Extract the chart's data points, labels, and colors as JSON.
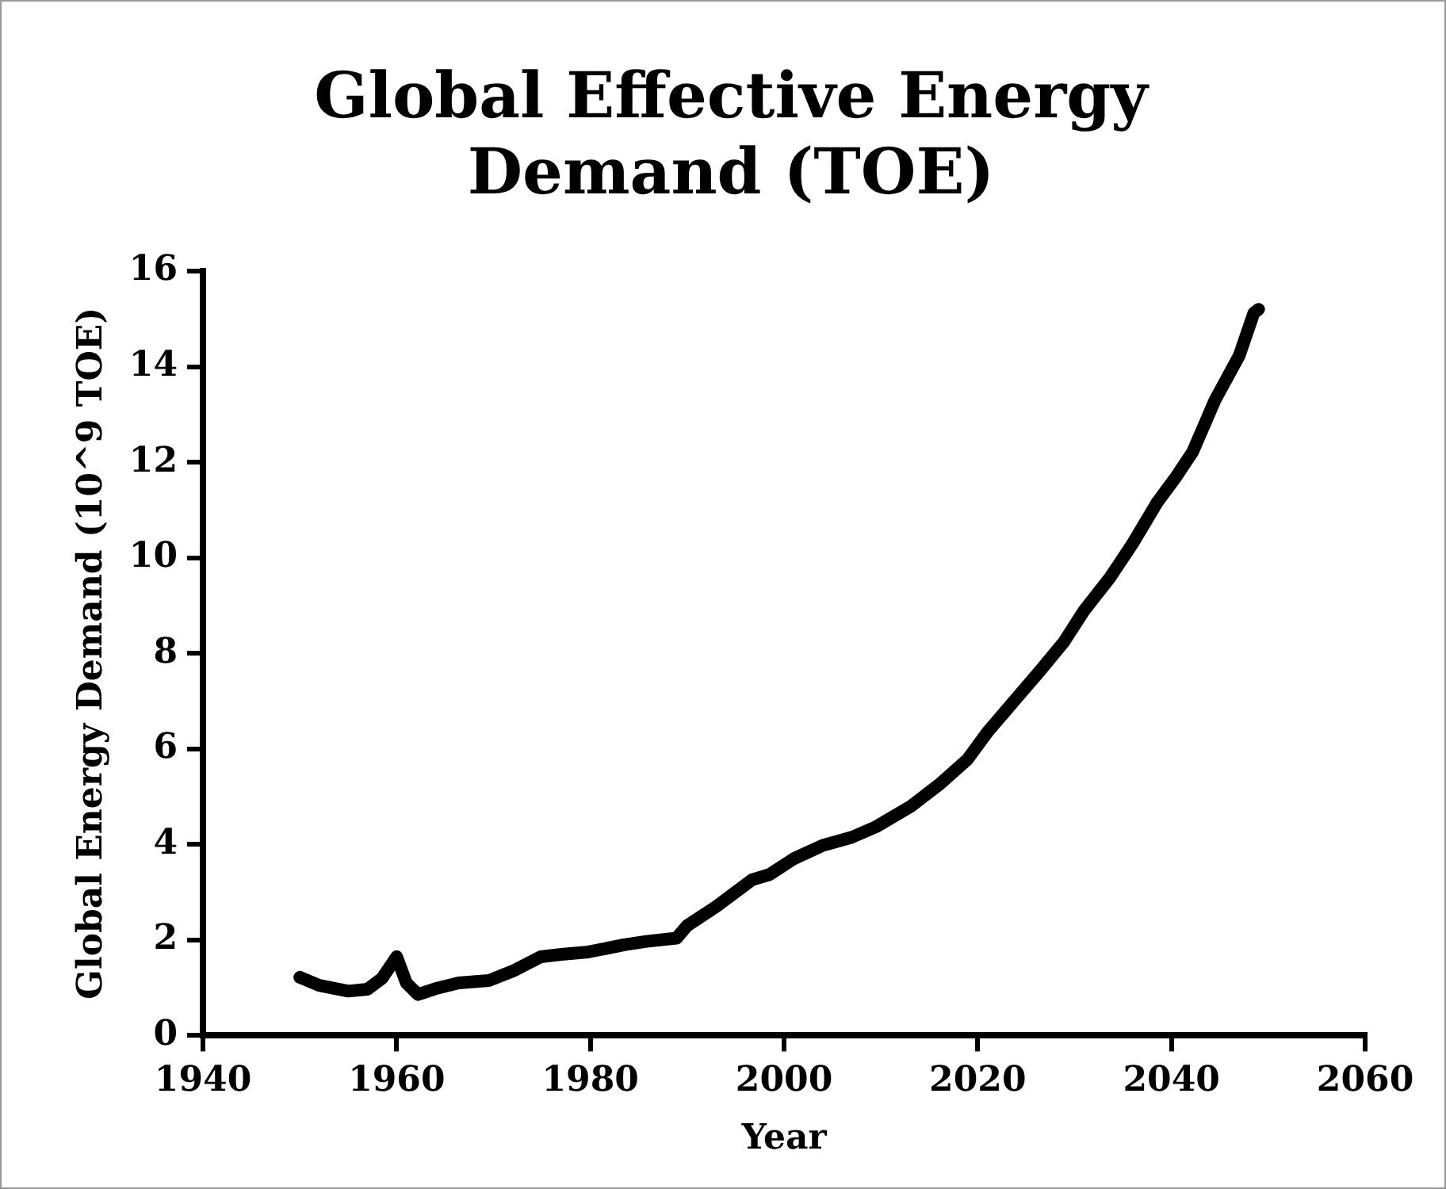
{
  "chart_data": {
    "type": "line",
    "title": "Global Effective Energy Demand (TOE)",
    "xlabel": "Year",
    "ylabel": "Global Energy Demand (10^9 TOE)",
    "x": [
      1950,
      1952,
      1955,
      1957,
      1958.5,
      1960,
      1961,
      1962.2,
      1964,
      1966.4,
      1969.5,
      1972,
      1974.9,
      1977,
      1979.8,
      1983.5,
      1985.8,
      1988.9,
      1990,
      1993,
      1996.7,
      1998.5,
      2001,
      2004,
      2007,
      2009.5,
      2013.1,
      2016,
      2018.9,
      2021,
      2024,
      2026.5,
      2028.9,
      2031,
      2033.6,
      2036,
      2038.5,
      2040.5,
      2042.2,
      2044.5,
      2047,
      2048.5,
      2049
    ],
    "series": [
      {
        "color": "#000000",
        "values": [
          1.22,
          1.05,
          0.93,
          0.97,
          1.2,
          1.65,
          1.1,
          0.86,
          0.98,
          1.1,
          1.15,
          1.35,
          1.65,
          1.7,
          1.75,
          1.9,
          1.97,
          2.04,
          2.3,
          2.7,
          3.26,
          3.37,
          3.7,
          3.98,
          4.15,
          4.37,
          4.8,
          5.25,
          5.77,
          6.35,
          7.06,
          7.65,
          8.24,
          8.9,
          9.57,
          10.3,
          11.15,
          11.7,
          12.22,
          13.3,
          14.23,
          15.12,
          15.2
        ]
      }
    ],
    "xlim": [
      1940,
      2060
    ],
    "xticks": [
      1940,
      1960,
      1980,
      2000,
      2020,
      2040,
      2060
    ],
    "ylim": [
      0,
      16
    ],
    "yticks": [
      0,
      2,
      4,
      6,
      8,
      10,
      12,
      14,
      16
    ],
    "grid": false,
    "legend": false,
    "marker": "none",
    "line_style": "solid"
  }
}
